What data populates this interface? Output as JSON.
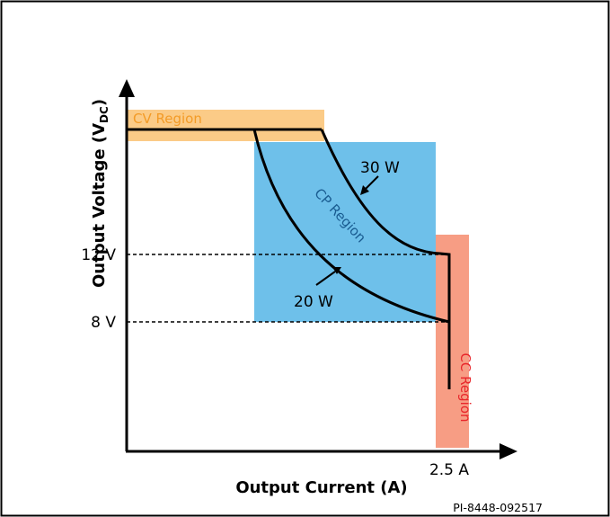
{
  "diagram": {
    "y_axis_label": "Output Voltage (V",
    "y_axis_label_sub": "DC",
    "y_axis_label_end": ")",
    "x_axis_label": "Output Current (A)",
    "tick_12v": "12 V",
    "tick_8v": "8 V",
    "tick_current": "2.5 A",
    "cv_region": "CV Region",
    "cp_region": "CP Region",
    "cc_region": "CC Region",
    "curve_30w_label": "30 W",
    "curve_20w_label": "20 W",
    "figure_id": "PI-8448-092517"
  },
  "colors": {
    "cv_region": "#fbcb87",
    "cp_region": "#6ec0ea",
    "cc_region": "#f79d84",
    "cv_text": "#f39b27",
    "cp_text": "#1a5c91",
    "cc_text": "#e8262b",
    "line": "#000000"
  }
}
